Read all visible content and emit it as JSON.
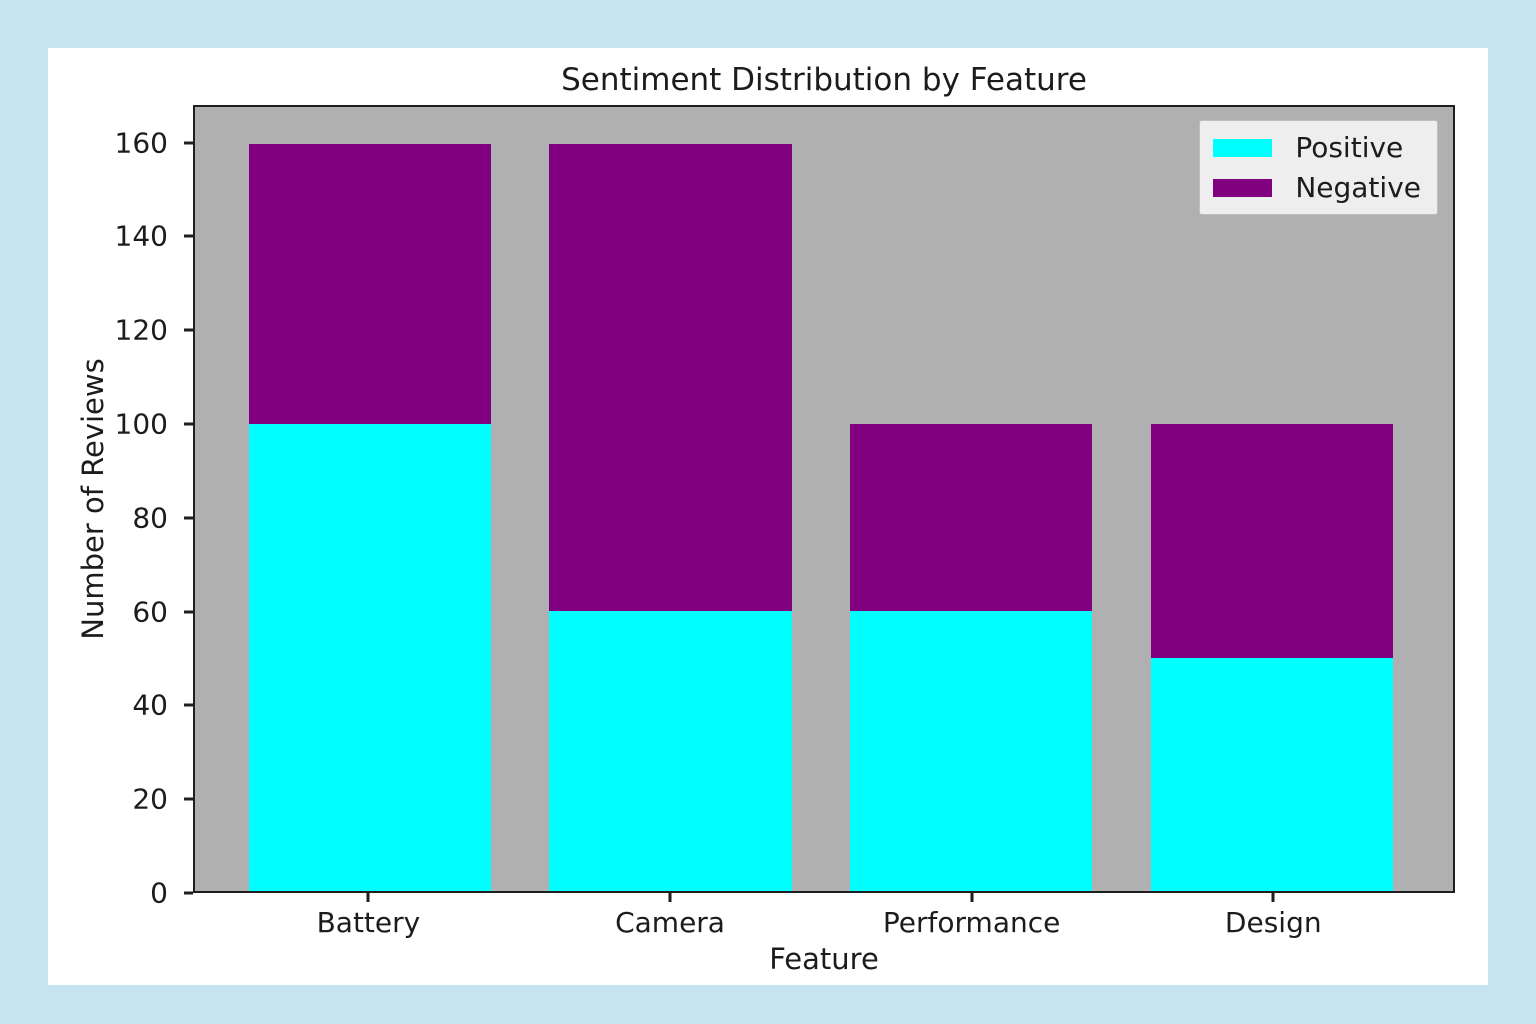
{
  "page": {
    "background_color": "#c6e3ef",
    "figure_background_color": "#ffffff"
  },
  "chart_data": {
    "type": "bar",
    "stacked": true,
    "title": "Sentiment Distribution by Feature",
    "xlabel": "Feature",
    "ylabel": "Number of Reviews",
    "categories": [
      "Battery",
      "Camera",
      "Performance",
      "Design"
    ],
    "series": [
      {
        "name": "Positive",
        "color": "#00ffff",
        "values": [
          100,
          60,
          60,
          50
        ]
      },
      {
        "name": "Negative",
        "color": "#800080",
        "values": [
          60,
          100,
          40,
          50
        ]
      }
    ],
    "ylim": [
      0,
      168
    ],
    "yticks": [
      0,
      20,
      40,
      60,
      80,
      100,
      120,
      140,
      160
    ],
    "grid": false,
    "legend_position": "upper right",
    "plot_background_color": "#b0b0b0",
    "bar_width_fraction": 0.8
  }
}
